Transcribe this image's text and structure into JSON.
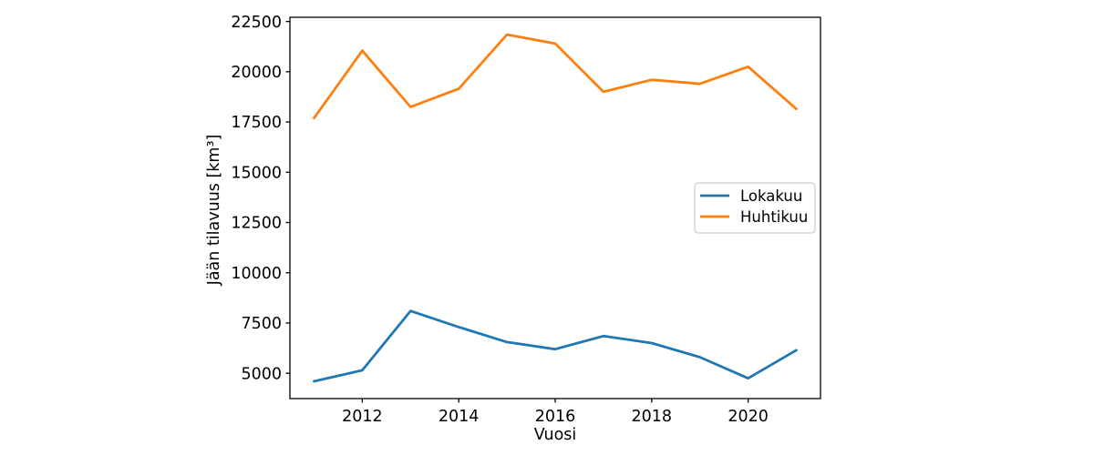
{
  "figure": {
    "background": "#ffffff",
    "spine_color": "#000000",
    "legend_border_color": "#cccccc",
    "legend_background": "#ffffff"
  },
  "chart_data": {
    "type": "line",
    "title": "",
    "xlabel": "Vuosi",
    "ylabel": "Jään tilavuus [km³]",
    "x": [
      2011,
      2012,
      2013,
      2014,
      2015,
      2016,
      2017,
      2018,
      2019,
      2020,
      2021
    ],
    "series": [
      {
        "name": "Lokakuu",
        "color": "#1f77b4",
        "values": [
          4600,
          5150,
          8100,
          7300,
          6550,
          6200,
          6850,
          6500,
          5800,
          4750,
          6150
        ]
      },
      {
        "name": "Huhtikuu",
        "color": "#ff7f0e",
        "values": [
          17700,
          21050,
          18250,
          19150,
          21850,
          21400,
          19000,
          19600,
          19400,
          20250,
          18150
        ]
      }
    ],
    "xticks": [
      2012,
      2014,
      2016,
      2018,
      2020
    ],
    "yticks": [
      5000,
      7500,
      10000,
      12500,
      15000,
      17500,
      20000,
      22500
    ],
    "xlim": [
      2010.5,
      2021.5
    ],
    "ylim": [
      3740,
      22710
    ],
    "grid": false,
    "legend_position": "center right"
  }
}
